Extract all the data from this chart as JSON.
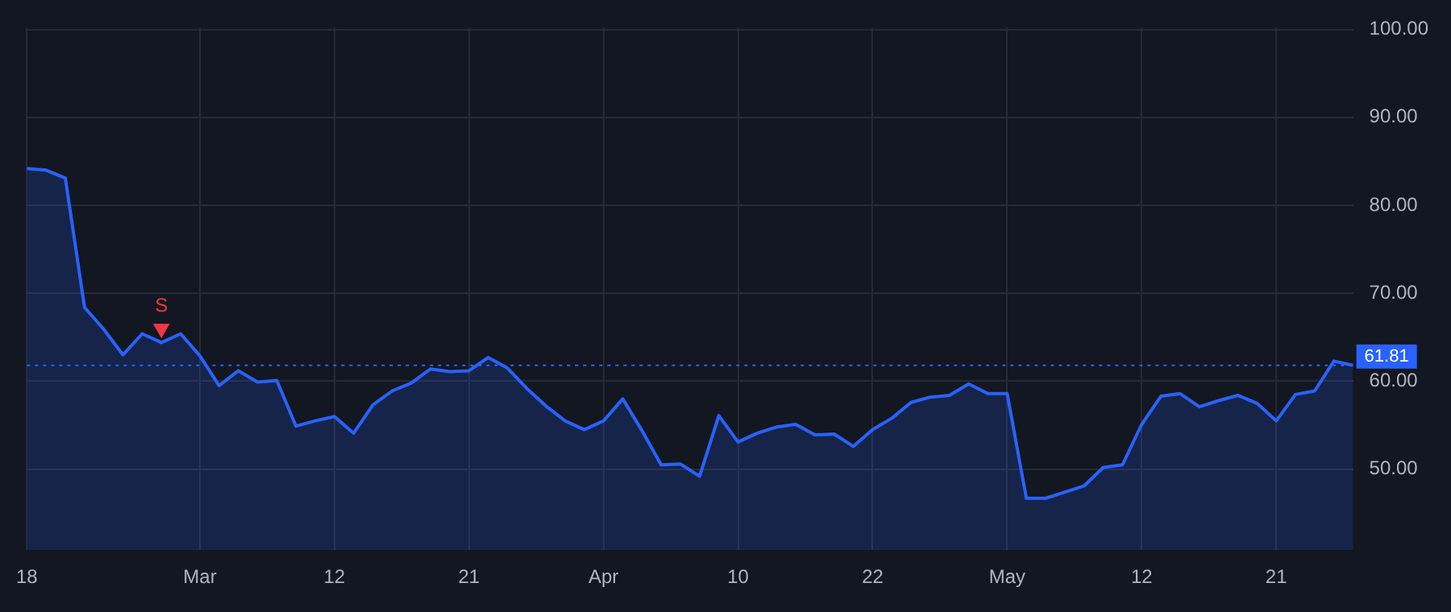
{
  "chart_data": {
    "type": "area",
    "categories": [
      "18",
      null,
      null,
      null,
      null,
      null,
      null,
      null,
      null,
      "Mar",
      null,
      null,
      null,
      null,
      null,
      null,
      "12",
      null,
      null,
      null,
      null,
      null,
      null,
      "21",
      null,
      null,
      null,
      null,
      null,
      null,
      "Apr",
      null,
      null,
      null,
      null,
      null,
      null,
      "10",
      null,
      null,
      null,
      null,
      null,
      null,
      "22",
      null,
      null,
      null,
      null,
      null,
      null,
      "May",
      null,
      null,
      null,
      null,
      null,
      null,
      "12",
      null,
      null,
      null,
      null,
      null,
      null,
      "21",
      null,
      null,
      null,
      null
    ],
    "series": [
      {
        "color": "#2962ff",
        "values": [
          84.2,
          84.0,
          83.1,
          68.4,
          65.9,
          63.0,
          65.4,
          64.4,
          65.4,
          62.9,
          59.5,
          61.2,
          59.9,
          60.1,
          54.9,
          55.5,
          56.0,
          54.1,
          57.3,
          58.9,
          59.8,
          61.4,
          61.1,
          61.2,
          62.7,
          61.5,
          59.2,
          57.2,
          55.5,
          54.5,
          55.5,
          58.0,
          54.4,
          50.5,
          50.6,
          49.2,
          56.1,
          53.1,
          54.1,
          54.8,
          55.1,
          53.9,
          54.0,
          52.6,
          54.5,
          55.8,
          57.6,
          58.2,
          58.4,
          59.7,
          58.6,
          58.6,
          46.7,
          46.7,
          47.4,
          48.1,
          50.2,
          50.5,
          55.1,
          58.3,
          58.6,
          57.1,
          57.8,
          58.4,
          57.5,
          55.5,
          58.5,
          58.9,
          62.3,
          61.81
        ]
      },
      {
        "type": "scatter",
        "name": "S",
        "color": "#f23645",
        "marker": "triangle",
        "values": [
          null,
          null,
          null,
          null,
          null,
          null,
          null,
          66.0,
          null,
          null,
          null,
          null,
          null,
          null,
          null,
          null,
          null,
          null,
          null,
          null,
          null,
          null,
          null,
          null,
          null,
          null,
          null,
          null,
          null,
          null,
          null,
          null,
          null,
          null,
          null,
          null,
          null,
          null,
          null,
          null,
          null,
          null,
          null,
          null,
          null,
          null,
          null,
          null,
          null,
          null,
          null,
          null,
          null,
          null,
          null,
          null,
          null,
          null,
          null,
          null,
          null,
          null,
          null,
          null,
          null,
          null,
          null,
          null,
          null,
          null
        ]
      }
    ],
    "ylim": [
      40.8,
      100.2
    ],
    "yticks": [
      {
        "value": 50,
        "label": "50.00"
      },
      {
        "value": 60,
        "label": "60.00"
      },
      {
        "value": 70,
        "label": "70.00"
      },
      {
        "value": 80,
        "label": "80.00"
      },
      {
        "value": 90,
        "label": "90.00"
      },
      {
        "value": 100,
        "label": "100.00"
      }
    ],
    "ref_lines": [
      {
        "axis": "y",
        "value": 61.81,
        "label": "61.81",
        "color": "#2962ff",
        "line_style": "dotted"
      }
    ],
    "grid": true,
    "legend": false
  }
}
